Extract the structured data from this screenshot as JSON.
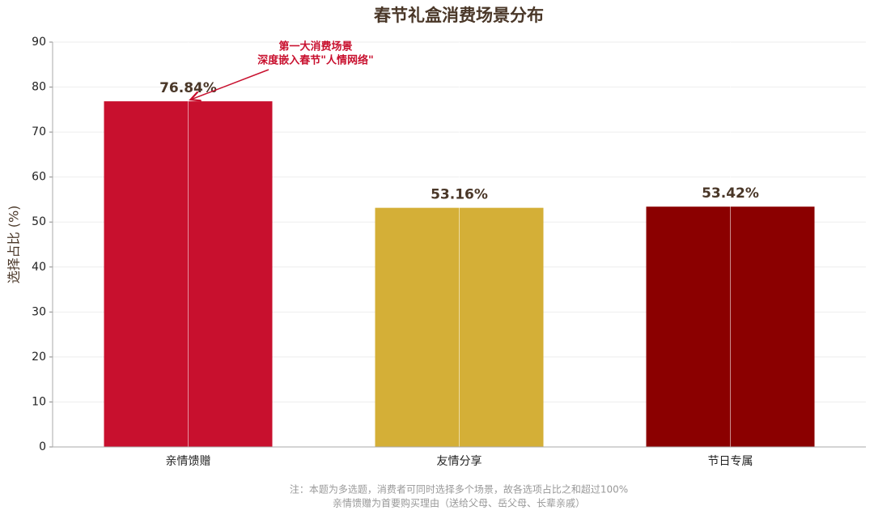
{
  "chart_data": {
    "type": "bar",
    "title": "春节礼盒消费场景分布",
    "y_label": "选择占比 (%)",
    "categories": [
      "亲情馈赠",
      "友情分享",
      "节日专属"
    ],
    "values": [
      76.84,
      53.16,
      53.42
    ],
    "value_labels": [
      "76.84%",
      "53.16%",
      "53.42%"
    ],
    "colors": [
      "#c8102e",
      "#d4af37",
      "#8b0000"
    ],
    "ylim": [
      0,
      90
    ],
    "yticks": [
      0,
      10,
      20,
      30,
      40,
      50,
      60,
      70,
      80,
      90
    ],
    "grid": true,
    "annotation": {
      "lines": [
        "第一大消费场景",
        "深度嵌入春节\"人情网络\""
      ],
      "target": 0
    },
    "notes": [
      "注：本题为多选题，消费者可同时选择多个场景，故各选项占比之和超过100%",
      "亲情馈赠为首要购买理由（送给父母、岳父母、长辈亲戚）"
    ]
  }
}
